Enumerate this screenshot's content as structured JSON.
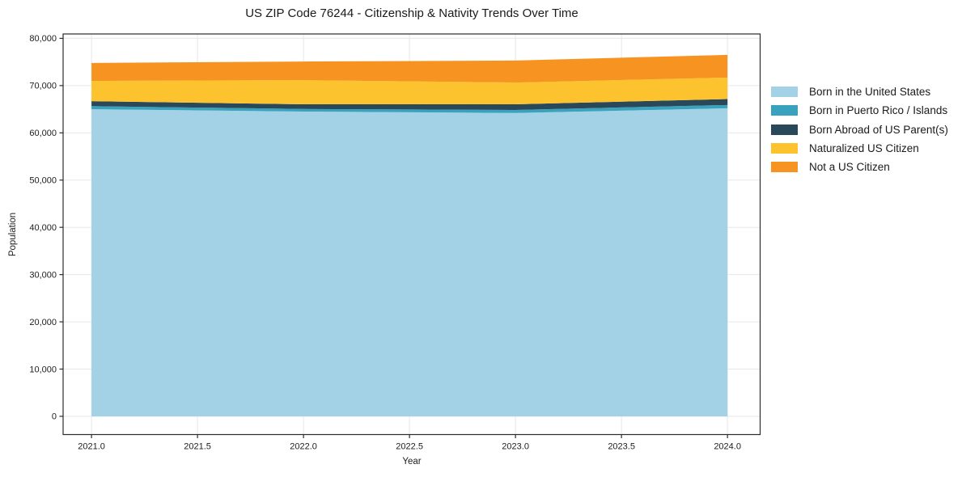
{
  "chart_data": {
    "type": "area",
    "stacked": true,
    "title": "US ZIP Code 76244 - Citizenship & Nativity Trends Over Time",
    "xlabel": "Year",
    "ylabel": "Population",
    "x": [
      2021,
      2022,
      2023,
      2024
    ],
    "series": [
      {
        "name": "Born in the United States",
        "color": "#a3d2e6",
        "values": [
          65000,
          64500,
          64200,
          65200
        ]
      },
      {
        "name": "Born in Puerto Rico / Islands",
        "color": "#39a3bd",
        "values": [
          650,
          550,
          650,
          700
        ]
      },
      {
        "name": "Born Abroad of US Parent(s)",
        "color": "#29495b",
        "values": [
          1050,
          1000,
          1200,
          1250
        ]
      },
      {
        "name": "Naturalized US Citizen",
        "color": "#fdc32f",
        "values": [
          4300,
          5100,
          4600,
          4550
        ]
      },
      {
        "name": "Not a US Citizen",
        "color": "#f79421",
        "values": [
          3800,
          3950,
          4650,
          4800
        ]
      }
    ],
    "totals": [
      74800,
      75100,
      75300,
      76500
    ],
    "xticks": [
      {
        "v": 2021.0,
        "label": "2021.0"
      },
      {
        "v": 2021.5,
        "label": "2021.5"
      },
      {
        "v": 2022.0,
        "label": "2022.0"
      },
      {
        "v": 2022.5,
        "label": "2022.5"
      },
      {
        "v": 2023.0,
        "label": "2023.0"
      },
      {
        "v": 2023.5,
        "label": "2023.5"
      },
      {
        "v": 2024.0,
        "label": "2024.0"
      }
    ],
    "yticks": [
      {
        "v": 0,
        "label": "0"
      },
      {
        "v": 10000,
        "label": "10,000"
      },
      {
        "v": 20000,
        "label": "20,000"
      },
      {
        "v": 30000,
        "label": "30,000"
      },
      {
        "v": 40000,
        "label": "40,000"
      },
      {
        "v": 50000,
        "label": "50,000"
      },
      {
        "v": 60000,
        "label": "60,000"
      },
      {
        "v": 70000,
        "label": "70,000"
      },
      {
        "v": 80000,
        "label": "80,000"
      }
    ],
    "xlim": [
      2020.866,
      2024.154
    ],
    "ylim": [
      -3860,
      80930
    ],
    "grid": true,
    "legend_position": "outside-right"
  },
  "colors": {
    "grid": "#e7e7e7",
    "spine": "#2b2b2b",
    "tick_text": "#1c1c1c",
    "background": "#ffffff"
  }
}
